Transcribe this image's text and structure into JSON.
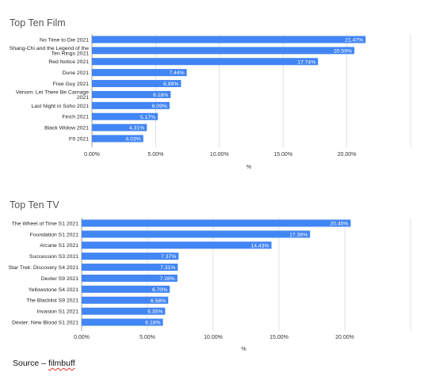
{
  "source": {
    "prefix": "Source – ",
    "name": "filmbuff"
  },
  "colors": {
    "bar": "#4285f4",
    "grid": "#d9d9d9",
    "text": "#222222"
  },
  "chart_data": [
    {
      "type": "bar",
      "orientation": "horizontal",
      "title": "Top Ten Film",
      "xlabel": "%",
      "ylabel": "",
      "xlim": [
        0,
        25
      ],
      "ticks": [
        "0.00%",
        "5.00%",
        "10.00%",
        "15.00%",
        "20.00%"
      ],
      "tick_values": [
        0,
        5,
        10,
        15,
        20
      ],
      "grid": true,
      "categories": [
        [
          "No Time to Die 2021"
        ],
        [
          "Shang-Chi and the Legend of the",
          "Ten Rings 2021"
        ],
        [
          "Red Notice 2021"
        ],
        [
          "Dune 2021"
        ],
        [
          "Free Guy 2021"
        ],
        [
          "Venom: Let There Be Carnage",
          "2021"
        ],
        [
          "Last Night in Soho 2021"
        ],
        [
          "Finch 2021"
        ],
        [
          "Black Widow 2021"
        ],
        [
          "F9 2021"
        ]
      ],
      "values": [
        21.47,
        20.59,
        17.74,
        7.44,
        6.99,
        6.18,
        6.09,
        5.17,
        4.31,
        4.03
      ],
      "value_labels": [
        "21.47%",
        "20.59%",
        "17.74%",
        "7.44%",
        "6.99%",
        "6.18%",
        "6.09%",
        "5.17%",
        "4.31%",
        "4.03%"
      ]
    },
    {
      "type": "bar",
      "orientation": "horizontal",
      "title": "Top Ten TV",
      "xlabel": "%",
      "ylabel": "",
      "xlim": [
        0,
        25
      ],
      "ticks": [
        "0.00%",
        "5.00%",
        "10.00%",
        "15.00%",
        "20.00%"
      ],
      "tick_values": [
        0,
        5,
        10,
        15,
        20
      ],
      "grid": true,
      "categories": [
        [
          "The Wheel of Time S1 2021"
        ],
        [
          "Foundation S1 2021"
        ],
        [
          "Arcane S1 2021"
        ],
        [
          "Succession S3 2021"
        ],
        [
          "Star Trek: Discovery S4 2021"
        ],
        [
          "Dexter S9 2021"
        ],
        [
          "Yellowstone S4 2021"
        ],
        [
          "The Blacklist S9 2021"
        ],
        [
          "Invasion S1 2021"
        ],
        [
          "Dexter: New Blood S1 2021"
        ]
      ],
      "values": [
        20.45,
        17.36,
        14.43,
        7.37,
        7.31,
        7.28,
        6.7,
        6.58,
        6.35,
        6.18
      ],
      "value_labels": [
        "20.45%",
        "17.36%",
        "14.43%",
        "7.37%",
        "7.31%",
        "7.28%",
        "6.70%",
        "6.58%",
        "6.35%",
        "6.18%"
      ]
    }
  ]
}
